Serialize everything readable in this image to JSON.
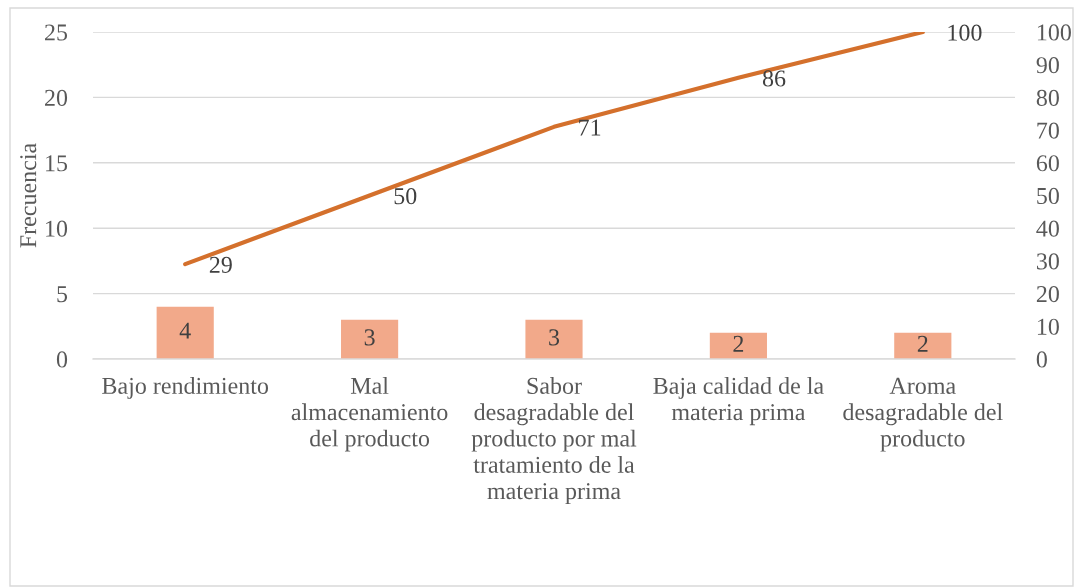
{
  "chart_data": {
    "type": "bar",
    "ylabel": "Frecuencia",
    "categories": [
      "Bajo rendimiento",
      "Mal almacenamiento del producto",
      "Sabor desagradable del producto por mal tratamiento de la materia prima",
      "Baja calidad de la materia prima",
      "Aroma desagradable del producto"
    ],
    "series": [
      {
        "color": "#f2a98a",
        "values": [
          4,
          3,
          3,
          2,
          2
        ]
      },
      {
        "type": "line",
        "axis": "y2",
        "color": "#d4702c",
        "values": [
          29,
          50,
          71,
          86,
          100
        ]
      }
    ],
    "ylim": [
      0,
      25
    ],
    "yticks": [
      0,
      5,
      10,
      15,
      20,
      25
    ],
    "y2lim": [
      0,
      100
    ],
    "y2ticks": [
      0,
      10,
      20,
      30,
      40,
      50,
      60,
      70,
      80,
      90,
      100
    ],
    "grid": "y",
    "data_labels": true,
    "marker": "none",
    "line_style": "solid"
  }
}
